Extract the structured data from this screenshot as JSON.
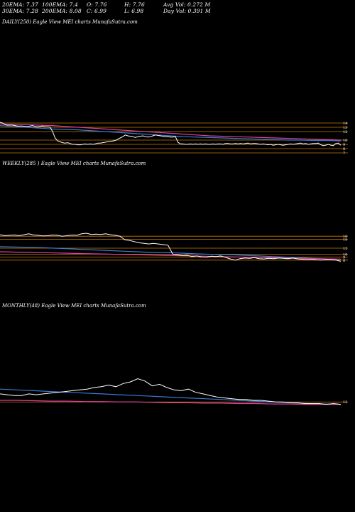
{
  "header": {
    "row1": [
      "20EMA: 7.37",
      "100EMA: 7.4",
      "O: 7.76",
      "H: 7.76",
      "Avg Vol: 0.272  M"
    ],
    "row2": [
      "30EMA: 7.28",
      "200EMA: 8.08",
      "C: 6.99",
      "L: 6.98",
      "Day Vol: 0.391  M"
    ]
  },
  "panels": [
    {
      "id": "daily",
      "title": "DAILY(250) Eagle   View  MEI charts MunafaSutra.com",
      "axis_labels": [
        "14",
        "13",
        "12",
        "10",
        "9",
        "8",
        "7"
      ]
    },
    {
      "id": "weekly",
      "title": "WEEKLY(285                    ) Eagle   View  MEI charts MunafaSutra.com",
      "axis_labels": [
        "16",
        "15",
        "12",
        "10",
        "9",
        "8"
      ]
    },
    {
      "id": "monthly",
      "title": "MONTHLY(48) Eagle   View  MEI charts MunafaSutra.com",
      "axis_labels": [
        "12"
      ]
    }
  ],
  "colors": {
    "price": "#ffffff",
    "ema_blue": "#3a7bd5",
    "ema_pink": "#e040a0",
    "level_line": "#c87a00"
  },
  "chart_data": [
    {
      "type": "line",
      "title": "DAILY(250) Eagle   View  MEI charts MunafaSutra.com",
      "ylim": [
        6.5,
        14.5
      ],
      "levels": [
        14,
        13,
        12,
        10,
        9,
        8,
        7
      ],
      "series": [
        {
          "values": [
            14.2,
            14.0,
            13.6,
            13.5,
            13.5,
            13.5,
            13.4,
            13.3,
            13.3,
            13.3,
            13.2,
            13.2,
            13.3,
            13.4,
            13.2,
            13.1,
            13.2,
            13.3,
            13.1,
            13.1,
            13.0,
            12.0,
            10.5,
            9.8,
            9.6,
            9.4,
            9.3,
            9.4,
            9.2,
            9.0,
            9.0,
            8.9,
            8.9,
            9.0,
            9.1,
            9.0,
            9.1,
            9.0,
            9.1,
            9.3,
            9.3,
            9.4,
            9.5,
            9.6,
            9.7,
            9.8,
            9.9,
            10.2,
            10.5,
            10.8,
            11.2,
            11.0,
            10.9,
            10.8,
            10.6,
            10.8,
            10.9,
            11.0,
            10.8,
            10.7,
            10.8,
            11.0,
            11.2,
            11.1,
            11.0,
            10.9,
            10.8,
            10.8,
            10.7,
            10.7,
            10.8,
            9.5,
            9.1,
            9.1,
            9.0,
            9.0,
            9.1,
            9.0,
            9.1,
            9.0,
            9.1,
            9.0,
            9.1,
            9.0,
            9.0,
            9.1,
            9.0,
            9.1,
            9.1,
            9.0,
            9.2,
            9.2,
            9.1,
            9.1,
            9.2,
            9.1,
            9.2,
            9.1,
            9.2,
            9.3,
            9.1,
            9.2,
            9.2,
            9.1,
            9.0,
            9.1,
            9.0,
            8.9,
            9.0,
            8.8,
            8.9,
            9.0,
            8.9,
            8.8,
            8.9,
            9.0,
            9.1,
            9.0,
            9.1,
            9.2,
            9.3,
            9.1,
            9.2,
            9.0,
            9.1,
            9.2,
            9.2,
            9.3,
            8.9,
            8.7,
            8.8,
            9.0,
            8.8,
            8.7,
            9.2,
            9.3,
            8.8
          ]
        },
        {
          "values": [
            13.4,
            13.2,
            13.0,
            12.8,
            12.6,
            12.5,
            12.4,
            12.2,
            12.0,
            11.8,
            11.6,
            11.4,
            11.2,
            11.0,
            10.8,
            10.7,
            10.6,
            10.5,
            10.4,
            10.3,
            10.2,
            10.1,
            10.0,
            10.0,
            9.9,
            9.9,
            9.8
          ]
        },
        {
          "values": [
            13.8,
            13.7,
            13.6,
            13.5,
            13.4,
            13.2,
            13.0,
            12.8,
            12.6,
            12.4,
            12.2,
            12.0,
            11.8,
            11.6,
            11.4,
            11.2,
            11.0,
            10.9,
            10.8,
            10.7,
            10.6,
            10.5,
            10.4,
            10.3,
            10.2,
            10.1,
            10.0
          ]
        }
      ]
    },
    {
      "type": "line",
      "title": "WEEKLY(285                    ) Eagle   View  MEI charts MunafaSutra.com",
      "ylim": [
        7,
        17
      ],
      "levels": [
        16,
        15,
        12,
        10,
        9,
        8
      ],
      "series": [
        {
          "values": [
            16.5,
            16.2,
            16.3,
            16.4,
            16.2,
            16.5,
            16.8,
            16.4,
            16.3,
            16.1,
            16.2,
            16.4,
            16.3,
            16.0,
            16.2,
            16.4,
            16.3,
            16.8,
            17.0,
            16.6,
            16.7,
            16.6,
            16.8,
            16.5,
            16.3,
            16.0,
            14.8,
            14.6,
            14.2,
            13.8,
            13.6,
            13.4,
            13.6,
            13.4,
            13.2,
            13.0,
            10.0,
            9.8,
            9.5,
            9.6,
            9.2,
            9.4,
            9.1,
            9.0,
            9.3,
            9.2,
            9.4,
            8.9,
            8.4,
            8.0,
            8.5,
            8.7,
            8.6,
            8.8,
            8.5,
            8.4,
            8.6,
            8.5,
            8.7,
            8.6,
            8.5,
            8.7,
            8.4,
            8.3,
            8.2,
            8.3,
            8.1,
            8.0,
            8.2,
            8.1,
            8.0,
            7.6
          ]
        },
        {
          "values": [
            12.5,
            12.4,
            12.3,
            12.2,
            12.0,
            11.8,
            11.6,
            11.4,
            11.2,
            11.0,
            10.8,
            10.6,
            10.5,
            10.4,
            10.2,
            10.0,
            9.9,
            9.8,
            9.6,
            9.4,
            9.2,
            9.0,
            8.8,
            8.6,
            8.4,
            8.3
          ]
        },
        {
          "values": [
            10.8,
            10.7,
            10.6,
            10.5,
            10.4,
            10.3,
            10.2,
            10.1,
            10.0,
            9.9,
            9.8,
            9.7,
            9.6,
            9.5,
            9.4,
            9.3,
            9.2,
            9.1,
            9.0,
            8.9,
            8.8,
            8.7,
            8.6,
            8.5,
            8.4,
            8.3
          ]
        }
      ]
    },
    {
      "type": "line",
      "title": "MONTHLY(48) Eagle   View  MEI charts MunafaSutra.com",
      "ylim": [
        6,
        45
      ],
      "levels": [
        12
      ],
      "series": [
        {
          "values": [
            22,
            21,
            20,
            20,
            22,
            21,
            22,
            23,
            24,
            25,
            26,
            27,
            28,
            30,
            31,
            33,
            31,
            35,
            37,
            41,
            38,
            32,
            34,
            30,
            27,
            26,
            28,
            24,
            22,
            20,
            18,
            17,
            16,
            15,
            15,
            14,
            14,
            13,
            12,
            12,
            11,
            11,
            10,
            10,
            10,
            9,
            10,
            9
          ]
        },
        {
          "values": [
            28,
            27,
            26,
            25,
            24,
            23,
            22,
            21,
            20,
            19,
            18,
            17,
            16,
            15,
            14,
            13,
            12,
            11,
            10,
            9.5,
            9
          ]
        },
        {
          "values": [
            14,
            14,
            13.5,
            13,
            13,
            12.5,
            12.5,
            12,
            12,
            11.5,
            11,
            11,
            10.5,
            10.5,
            10,
            10,
            9.5,
            9.5,
            9,
            9,
            9
          ]
        }
      ]
    }
  ]
}
